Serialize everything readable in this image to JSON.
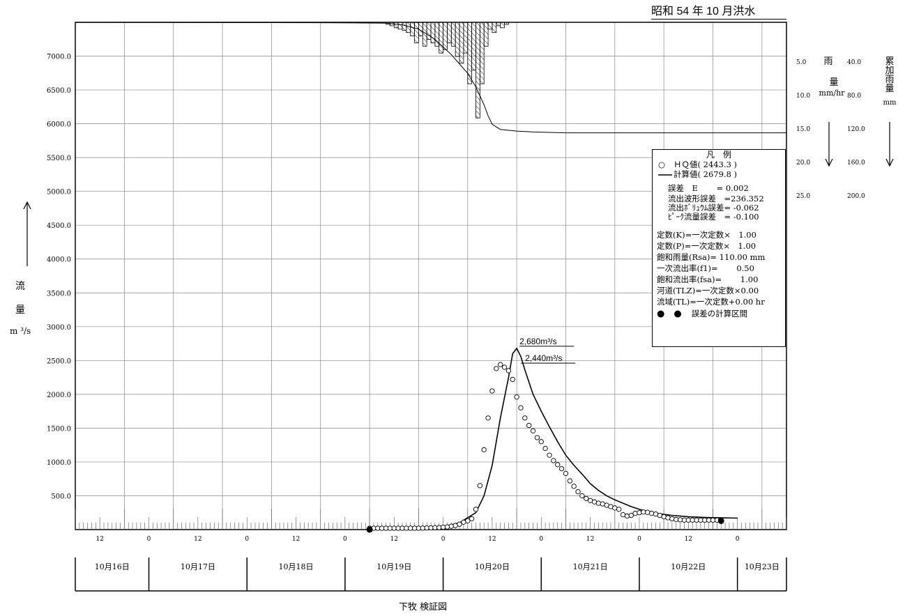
{
  "header_title": "昭和 54 年 10 月洪水",
  "caption": "下牧 検証図",
  "y_axis_label": {
    "chars": [
      "流",
      "量"
    ],
    "unit": "m ³/s"
  },
  "rain_axis": {
    "left_label": [
      "雨",
      "量"
    ],
    "left_unit": "mm/hr",
    "right_label": [
      "累",
      "加",
      "雨",
      "量"
    ],
    "right_unit": "mm",
    "rain_ticks": [
      "5.0",
      "10.0",
      "15.0",
      "20.0",
      "25.0"
    ],
    "cum_ticks": [
      "40.0",
      "80.0",
      "120.0",
      "160.0",
      "200.0"
    ]
  },
  "legend": {
    "title": "凡　例",
    "hq_label": "ＨＱ値( 2443.3 )",
    "calc_label": "計算値( 2679.8 )",
    "errors": [
      "誤差　E　　 =  0.002",
      "流出波形誤差　=236.352",
      "流出ﾎﾞﾘｭｳﾑ誤差= -0.062",
      "ﾋﾟｰｸ流量誤差　= -0.100"
    ],
    "params": [
      "定数(K)=一次定数×　1.00",
      "定数(P)=一次定数×　1.00",
      "飽和雨量(Rsa)=  110.00 mm",
      "一次流出率(f1)=　　  0.50",
      "飽和流出率(fsa)=　　 1.00",
      "河道(TLZ)=一次定数×0.00",
      "流域(TL)=一次定数+0.00 hr"
    ],
    "interval_label": "誤差の計算区間"
  },
  "chart_data": {
    "type": "line",
    "y_ticks": [
      "500.0",
      "1000.0",
      "1500.0",
      "2000.0",
      "2500.0",
      "3000.0",
      "3500.0",
      "4000.0",
      "4500.0",
      "5000.0",
      "5500.0",
      "6000.0",
      "6500.0",
      "7000.0"
    ],
    "ylim": [
      0,
      7500
    ],
    "x_hour_labels": [
      "12",
      "0",
      "12",
      "0",
      "12",
      "0",
      "12",
      "0",
      "12",
      "0",
      "12",
      "0",
      "12",
      "0"
    ],
    "date_labels": [
      "10月16日",
      "10月17日",
      "10月18日",
      "10月19日",
      "10月20日",
      "10月21日",
      "10月22日",
      "10月23日"
    ],
    "x_range_hours": [
      0,
      174
    ],
    "peak_annotations": [
      "2,680m³/s",
      "2,440m³/s"
    ],
    "series": [
      {
        "name": "計算値",
        "style": "line",
        "points": [
          [
            72,
            2
          ],
          [
            84,
            15
          ],
          [
            90,
            40
          ],
          [
            94,
            100
          ],
          [
            98,
            250
          ],
          [
            100,
            500
          ],
          [
            102,
            950
          ],
          [
            104,
            1650
          ],
          [
            106,
            2250
          ],
          [
            107,
            2600
          ],
          [
            108,
            2680
          ],
          [
            109,
            2560
          ],
          [
            110,
            2360
          ],
          [
            112,
            2000
          ],
          [
            114,
            1750
          ],
          [
            116,
            1520
          ],
          [
            118,
            1300
          ],
          [
            120,
            1100
          ],
          [
            122,
            950
          ],
          [
            124,
            820
          ],
          [
            126,
            680
          ],
          [
            128,
            580
          ],
          [
            130,
            500
          ],
          [
            132,
            440
          ],
          [
            134,
            390
          ],
          [
            136,
            340
          ],
          [
            138,
            300
          ],
          [
            140,
            265
          ],
          [
            142,
            240
          ],
          [
            144,
            225
          ],
          [
            146,
            210
          ],
          [
            148,
            200
          ],
          [
            150,
            190
          ],
          [
            154,
            180
          ],
          [
            158,
            175
          ],
          [
            162,
            170
          ]
        ]
      },
      {
        "name": "ＨＱ値",
        "style": "points",
        "points": [
          [
            72,
            20
          ],
          [
            73,
            20
          ],
          [
            74,
            20
          ],
          [
            75,
            20
          ],
          [
            76,
            20
          ],
          [
            77,
            20
          ],
          [
            78,
            20
          ],
          [
            79,
            20
          ],
          [
            80,
            20
          ],
          [
            81,
            20
          ],
          [
            82,
            20
          ],
          [
            83,
            20
          ],
          [
            84,
            20
          ],
          [
            85,
            22
          ],
          [
            86,
            24
          ],
          [
            87,
            26
          ],
          [
            88,
            28
          ],
          [
            89,
            30
          ],
          [
            90,
            35
          ],
          [
            91,
            40
          ],
          [
            92,
            50
          ],
          [
            93,
            60
          ],
          [
            94,
            80
          ],
          [
            95,
            110
          ],
          [
            96,
            130
          ],
          [
            97,
            160
          ],
          [
            98,
            300
          ],
          [
            99,
            650
          ],
          [
            100,
            1180
          ],
          [
            101,
            1650
          ],
          [
            102,
            2050
          ],
          [
            103,
            2380
          ],
          [
            104,
            2440
          ],
          [
            105,
            2400
          ],
          [
            106,
            2350
          ],
          [
            107,
            2220
          ],
          [
            108,
            1960
          ],
          [
            109,
            1800
          ],
          [
            110,
            1650
          ],
          [
            111,
            1540
          ],
          [
            112,
            1460
          ],
          [
            113,
            1360
          ],
          [
            114,
            1300
          ],
          [
            115,
            1200
          ],
          [
            116,
            1100
          ],
          [
            117,
            1020
          ],
          [
            118,
            960
          ],
          [
            119,
            900
          ],
          [
            120,
            830
          ],
          [
            121,
            720
          ],
          [
            122,
            640
          ],
          [
            123,
            560
          ],
          [
            124,
            500
          ],
          [
            125,
            460
          ],
          [
            126,
            430
          ],
          [
            127,
            410
          ],
          [
            128,
            390
          ],
          [
            129,
            380
          ],
          [
            130,
            360
          ],
          [
            131,
            340
          ],
          [
            132,
            320
          ],
          [
            133,
            300
          ],
          [
            134,
            220
          ],
          [
            135,
            200
          ],
          [
            136,
            210
          ],
          [
            137,
            240
          ],
          [
            138,
            250
          ],
          [
            139,
            260
          ],
          [
            140,
            255
          ],
          [
            141,
            240
          ],
          [
            142,
            230
          ],
          [
            143,
            210
          ],
          [
            144,
            190
          ],
          [
            145,
            175
          ],
          [
            146,
            160
          ],
          [
            147,
            150
          ],
          [
            148,
            145
          ],
          [
            149,
            140
          ],
          [
            150,
            140
          ],
          [
            151,
            140
          ],
          [
            152,
            140
          ],
          [
            153,
            140
          ],
          [
            154,
            140
          ],
          [
            155,
            140
          ],
          [
            156,
            140
          ],
          [
            157,
            140
          ]
        ]
      },
      {
        "name": "誤差の計算区間",
        "style": "markers",
        "points": [
          [
            72,
            0
          ],
          [
            158,
            130
          ]
        ]
      },
      {
        "name": "雨量",
        "style": "hyetograph",
        "unit": "mm/hr",
        "start_hour": 76,
        "values": [
          0.3,
          0.5,
          0.8,
          1.0,
          1.2,
          1.5,
          2.0,
          3.0,
          2.0,
          3.5,
          2.5,
          3.0,
          3.5,
          4.5,
          4.0,
          3.0,
          3.5,
          5.0,
          6.0,
          4.5,
          9.0,
          7.0,
          14.0,
          9.0,
          3.5,
          1.0,
          1.5,
          0.5,
          0.8,
          0.3
        ]
      },
      {
        "name": "累加雨量",
        "style": "line",
        "unit": "mm",
        "points": [
          [
            0,
            0.2
          ],
          [
            60,
            0.5
          ],
          [
            76,
            1
          ],
          [
            80,
            3
          ],
          [
            84,
            8
          ],
          [
            88,
            20
          ],
          [
            92,
            38
          ],
          [
            96,
            60
          ],
          [
            98,
            76
          ],
          [
            100,
            97
          ],
          [
            101,
            110
          ],
          [
            102,
            120
          ],
          [
            104,
            126
          ],
          [
            108,
            128
          ],
          [
            112,
            129
          ],
          [
            120,
            130
          ],
          [
            150,
            130
          ],
          [
            174,
            130
          ]
        ]
      }
    ]
  }
}
